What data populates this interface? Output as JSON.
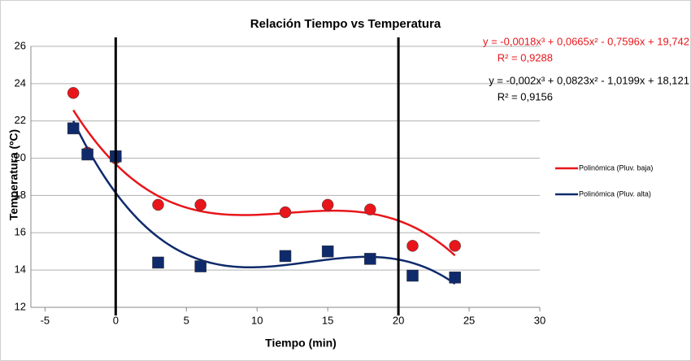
{
  "chart_data": {
    "type": "scatter",
    "title": "Relación Tiempo vs Temperatura",
    "x_label": "Tiempo (min)",
    "y_label": "Temperatura (ºC)",
    "xlim": [
      -6,
      30
    ],
    "xticks": [
      -5,
      0,
      5,
      10,
      15,
      20,
      25,
      30
    ],
    "ylim": [
      12,
      26
    ],
    "yticks": [
      12,
      14,
      16,
      18,
      20,
      22,
      24,
      26
    ],
    "grid": true,
    "vlines": [
      0,
      20
    ],
    "series": [
      {
        "name": "Polinómica (Pluv. baja)",
        "color": "#e8161b",
        "marker": "circle",
        "x": [
          -3,
          -2,
          0,
          3,
          6,
          12,
          15,
          18,
          21,
          24
        ],
        "values": [
          23.5,
          20.3,
          20.0,
          17.5,
          17.5,
          17.1,
          17.5,
          17.25,
          15.3,
          15.3
        ],
        "equation": "y = -0,0018x³ + 0,0665x² - 0,7596x + 19,742",
        "r2": "R² = 0,9288"
      },
      {
        "name": "Polinómica (Pluv. alta)",
        "color": "#0f2a6b",
        "marker": "square",
        "x": [
          -3,
          -2,
          0,
          3,
          6,
          12,
          15,
          18,
          21,
          24
        ],
        "values": [
          21.6,
          20.2,
          20.1,
          14.4,
          14.2,
          14.75,
          15.0,
          14.6,
          13.7,
          13.6
        ],
        "equation": "y = -0,002x³ + 0,0823x² - 1,0199x + 18,121",
        "r2": "R² = 0,9156"
      }
    ]
  }
}
